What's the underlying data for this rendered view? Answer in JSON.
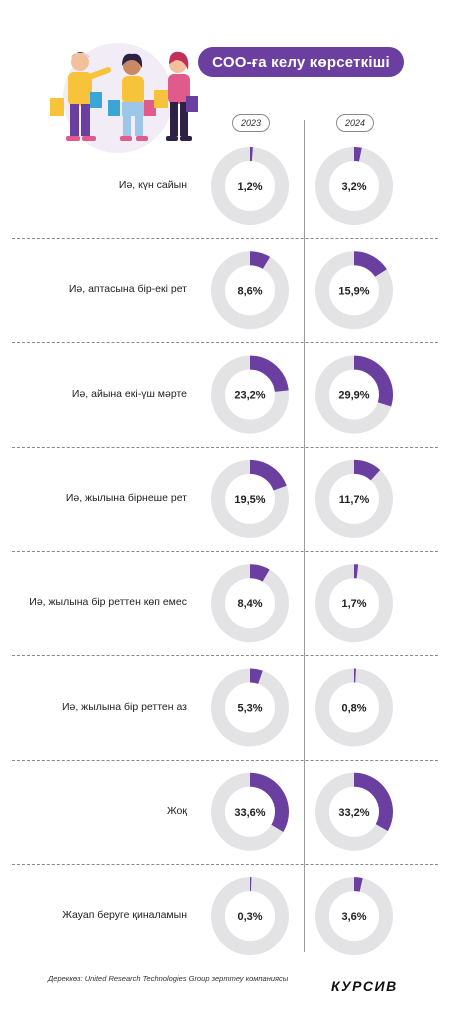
{
  "header": {
    "title": "СОО-ға келу көрсеткіші"
  },
  "years": [
    "2023",
    "2024"
  ],
  "chart_data": {
    "type": "donut",
    "title": "СОО-ға келу көрсеткіші",
    "unit": "%",
    "series_names": [
      "2023",
      "2024"
    ],
    "rows": [
      {
        "label": "Иә, күн сайын",
        "values": [
          1.2,
          3.2
        ],
        "display": [
          "1,2%",
          "3,2%"
        ]
      },
      {
        "label": "Иә, аптасына бір-екі рет",
        "values": [
          8.6,
          15.9
        ],
        "display": [
          "8,6%",
          "15,9%"
        ]
      },
      {
        "label": "Иә, айына екі-үш мәрте",
        "values": [
          23.2,
          29.9
        ],
        "display": [
          "23,2%",
          "29,9%"
        ]
      },
      {
        "label": "Иә, жылына бірнеше рет",
        "values": [
          19.5,
          11.7
        ],
        "display": [
          "19,5%",
          "11,7%"
        ]
      },
      {
        "label": "Иә, жылына бір реттен көп емес",
        "values": [
          8.4,
          1.7
        ],
        "display": [
          "8,4%",
          "1,7%"
        ]
      },
      {
        "label": "Иә, жылына бір реттен аз",
        "values": [
          5.3,
          0.8
        ],
        "display": [
          "5,3%",
          "0,8%"
        ]
      },
      {
        "label": "Жоқ",
        "values": [
          33.6,
          33.2
        ],
        "display": [
          "33,6%",
          "33,2%"
        ]
      },
      {
        "label": "Жауап беруге қиналамын",
        "values": [
          0.3,
          3.6
        ],
        "display": [
          "0,3%",
          "3,6%"
        ]
      }
    ]
  },
  "colors": {
    "accent": "#6b3fa0",
    "ring_track": "#e3e3e6"
  },
  "footer": {
    "source": "Дереккөз: United Research Technologies Group зерттеу компаниясы",
    "brand": "КУРСИВ"
  },
  "illustration": {
    "icon": "shoppers-illustration"
  }
}
